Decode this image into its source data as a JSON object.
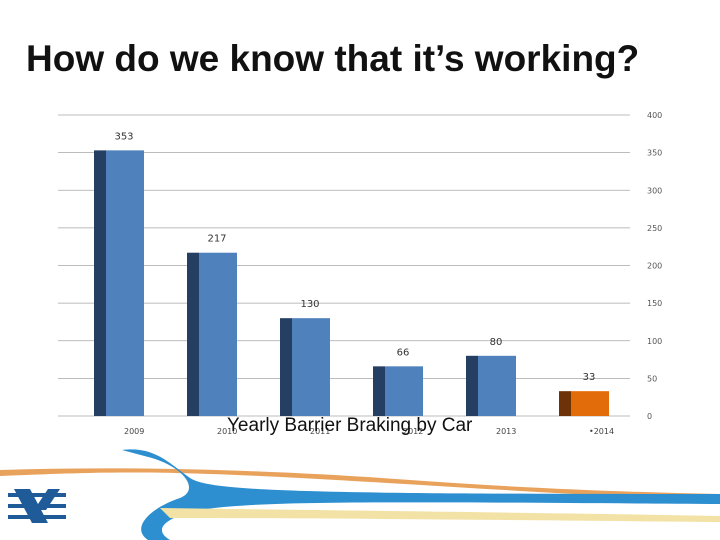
{
  "slide": {
    "title": "How do we know that it’s working?"
  },
  "chart_data": {
    "type": "bar",
    "title": "Yearly Barrier Braking by Car",
    "categories": [
      "2009",
      "2010",
      "2011",
      "2012",
      "2013",
      "2014"
    ],
    "values": [
      353,
      217,
      130,
      66,
      80,
      33
    ],
    "data_labels": [
      "353",
      "217",
      "130",
      "66",
      "80",
      "33"
    ],
    "category_labels": [
      "2009",
      "2010",
      "2011",
      "2012",
      "2013",
      "•2014"
    ],
    "ylim": [
      0,
      400
    ],
    "y_ticks": [
      "0",
      "50",
      "100",
      "150",
      "200",
      "250",
      "300",
      "350",
      "400"
    ],
    "y_axis_side": "right",
    "grid": true,
    "xlabel": "",
    "ylabel": "",
    "colors": {
      "bar": "#4F81BD",
      "bar_side": "#253F63",
      "highlight_bar": "#E36C0A",
      "highlight_bar_side": "#6E3209",
      "grid": "#A6A6A6"
    },
    "highlight_index": 5
  },
  "theme": {
    "footer_blue": "#2E8FD0",
    "footer_orange": "#E9A25C",
    "footer_yellow": "#F3E2A6",
    "logo_blue": "#1F5B99"
  }
}
